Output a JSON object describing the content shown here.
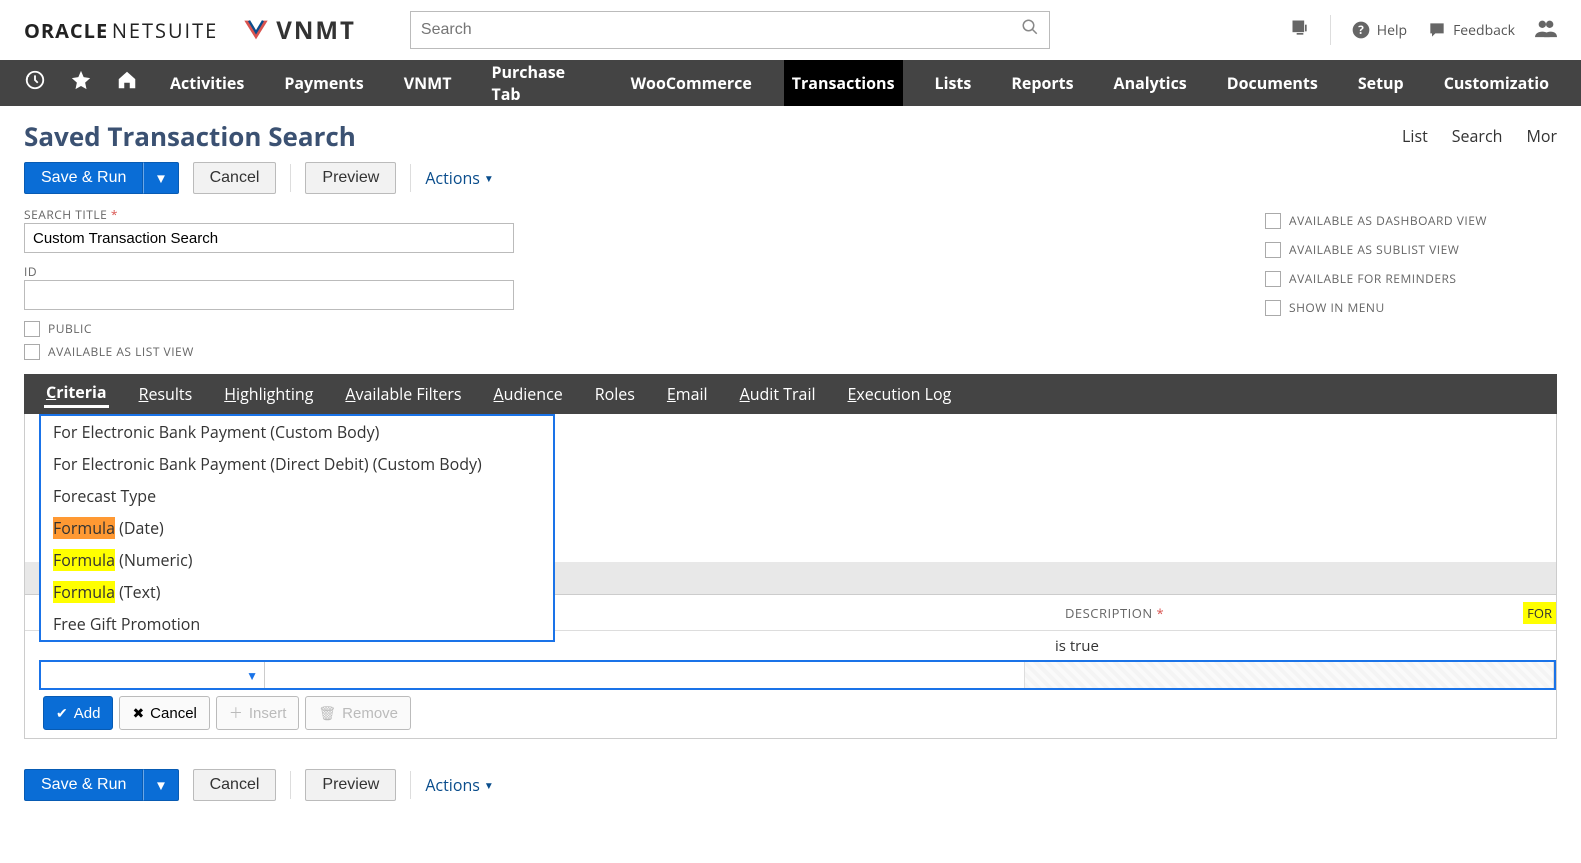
{
  "header": {
    "logo_oracle": "ORACLE",
    "logo_netsuite": "NETSUITE",
    "logo_vnmt": "VNMT",
    "search_placeholder": "Search",
    "help_label": "Help",
    "feedback_label": "Feedback"
  },
  "mainnav": {
    "items": [
      "Activities",
      "Payments",
      "VNMT",
      "Purchase Tab",
      "WooCommerce",
      "Transactions",
      "Lists",
      "Reports",
      "Analytics",
      "Documents",
      "Setup",
      "Customizatio"
    ],
    "active_index": 5
  },
  "page": {
    "title": "Saved Transaction Search",
    "right_links": [
      "List",
      "Search",
      "Mor"
    ]
  },
  "actions": {
    "save_run": "Save & Run",
    "cancel": "Cancel",
    "preview": "Preview",
    "actions": "Actions"
  },
  "form": {
    "search_title_label": "SEARCH TITLE",
    "search_title_value": "Custom Transaction Search",
    "id_label": "ID",
    "id_value": "",
    "public_label": "PUBLIC",
    "available_list_label": "AVAILABLE AS LIST VIEW",
    "right_checks": [
      "AVAILABLE AS DASHBOARD VIEW",
      "AVAILABLE AS SUBLIST VIEW",
      "AVAILABLE FOR REMINDERS",
      "SHOW IN MENU"
    ]
  },
  "subtabs": {
    "items": [
      {
        "label": "Criteria",
        "ul": "C"
      },
      {
        "label": "Results",
        "ul": "R"
      },
      {
        "label": "Highlighting",
        "ul": "H"
      },
      {
        "label": "Available Filters",
        "ul": "A"
      },
      {
        "label": "Audience",
        "ul": "A"
      },
      {
        "label": "Roles",
        "ul": ""
      },
      {
        "label": "Email",
        "ul": "E"
      },
      {
        "label": "Audit Trail",
        "ul": "A"
      },
      {
        "label": "Execution Log",
        "ul": "E"
      }
    ],
    "active_index": 0
  },
  "dropdown": {
    "items": [
      {
        "text": "For Electronic Bank Payment (Custom Body)"
      },
      {
        "text": "For Electronic Bank Payment (Direct Debit) (Custom Body)"
      },
      {
        "text": "Forecast Type"
      },
      {
        "prefix": "Formula",
        "suffix": " (Date)",
        "hl": "orange"
      },
      {
        "prefix": "Formula",
        "suffix": " (Numeric)",
        "hl": "yellow"
      },
      {
        "prefix": "Formula",
        "suffix": " (Text)",
        "hl": "yellow"
      },
      {
        "text": "Free Gift Promotion"
      }
    ]
  },
  "table": {
    "desc_header": "DESCRIPTION",
    "for_header": "FOR",
    "row_value": "is true"
  },
  "row_buttons": {
    "add": "Add",
    "cancel": "Cancel",
    "insert": "Insert",
    "remove": "Remove"
  }
}
